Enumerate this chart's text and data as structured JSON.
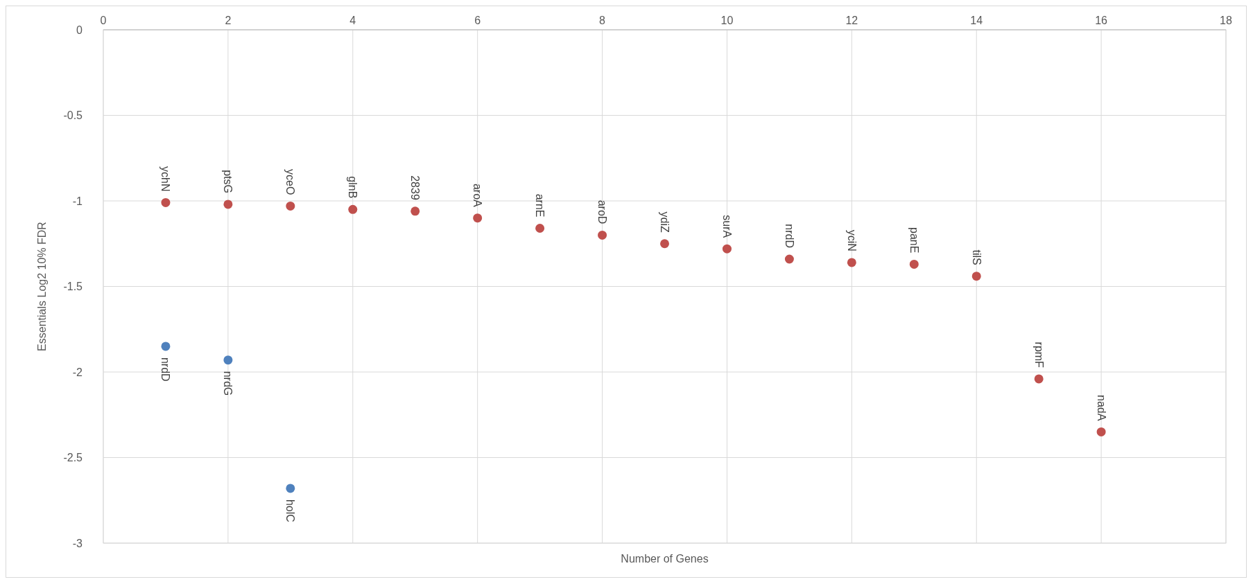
{
  "chart_data": {
    "type": "scatter",
    "xlabel": "Number of Genes",
    "ylabel": "Essentials Log2 10% FDR",
    "xlim": [
      0,
      18
    ],
    "xticks": [
      0,
      2,
      4,
      6,
      8,
      10,
      12,
      14,
      16,
      18
    ],
    "ylim": [
      -3,
      0
    ],
    "yticks": [
      -3,
      -2.5,
      -2,
      -1.5,
      -1,
      -0.5,
      0
    ],
    "grid": true,
    "marker": "circle",
    "series": [
      {
        "color": "#c0504d",
        "x": [
          1,
          2,
          3,
          4,
          5,
          6,
          7,
          8,
          9,
          10,
          11,
          12,
          13,
          14,
          15,
          16
        ],
        "values": [
          -1.01,
          -1.02,
          -1.03,
          -1.05,
          -1.06,
          -1.1,
          -1.16,
          -1.2,
          -1.25,
          -1.28,
          -1.34,
          -1.36,
          -1.37,
          -1.44,
          -2.04,
          -2.35
        ]
      },
      {
        "color": "#4f81bd",
        "x": [
          1,
          2,
          3
        ],
        "values": [
          -1.85,
          -1.93,
          -2.68
        ]
      }
    ],
    "annotations": [
      {
        "text": "ychN",
        "x": 1,
        "y": -1.01
      },
      {
        "text": "ptsG",
        "x": 2,
        "y": -1.02
      },
      {
        "text": "yceO",
        "x": 3,
        "y": -1.03
      },
      {
        "text": "glnB",
        "x": 4,
        "y": -1.05
      },
      {
        "text": "2839",
        "x": 5,
        "y": -1.06
      },
      {
        "text": "aroA",
        "x": 6,
        "y": -1.1
      },
      {
        "text": "arnE",
        "x": 7,
        "y": -1.16
      },
      {
        "text": "aroD",
        "x": 8,
        "y": -1.2
      },
      {
        "text": "ydiZ",
        "x": 9,
        "y": -1.25
      },
      {
        "text": "surA",
        "x": 10,
        "y": -1.28
      },
      {
        "text": "nrdD",
        "x": 11,
        "y": -1.34
      },
      {
        "text": "yciN",
        "x": 12,
        "y": -1.36
      },
      {
        "text": "panE",
        "x": 13,
        "y": -1.37
      },
      {
        "text": "tilS",
        "x": 14,
        "y": -1.44
      },
      {
        "text": "rpmF",
        "x": 15,
        "y": -2.04
      },
      {
        "text": "nadA",
        "x": 16,
        "y": -2.35
      },
      {
        "text": "nrdD",
        "x": 1,
        "y": -1.85
      },
      {
        "text": "nrdG",
        "x": 2,
        "y": -1.93
      },
      {
        "text": "holC",
        "x": 3,
        "y": -2.68
      }
    ]
  }
}
